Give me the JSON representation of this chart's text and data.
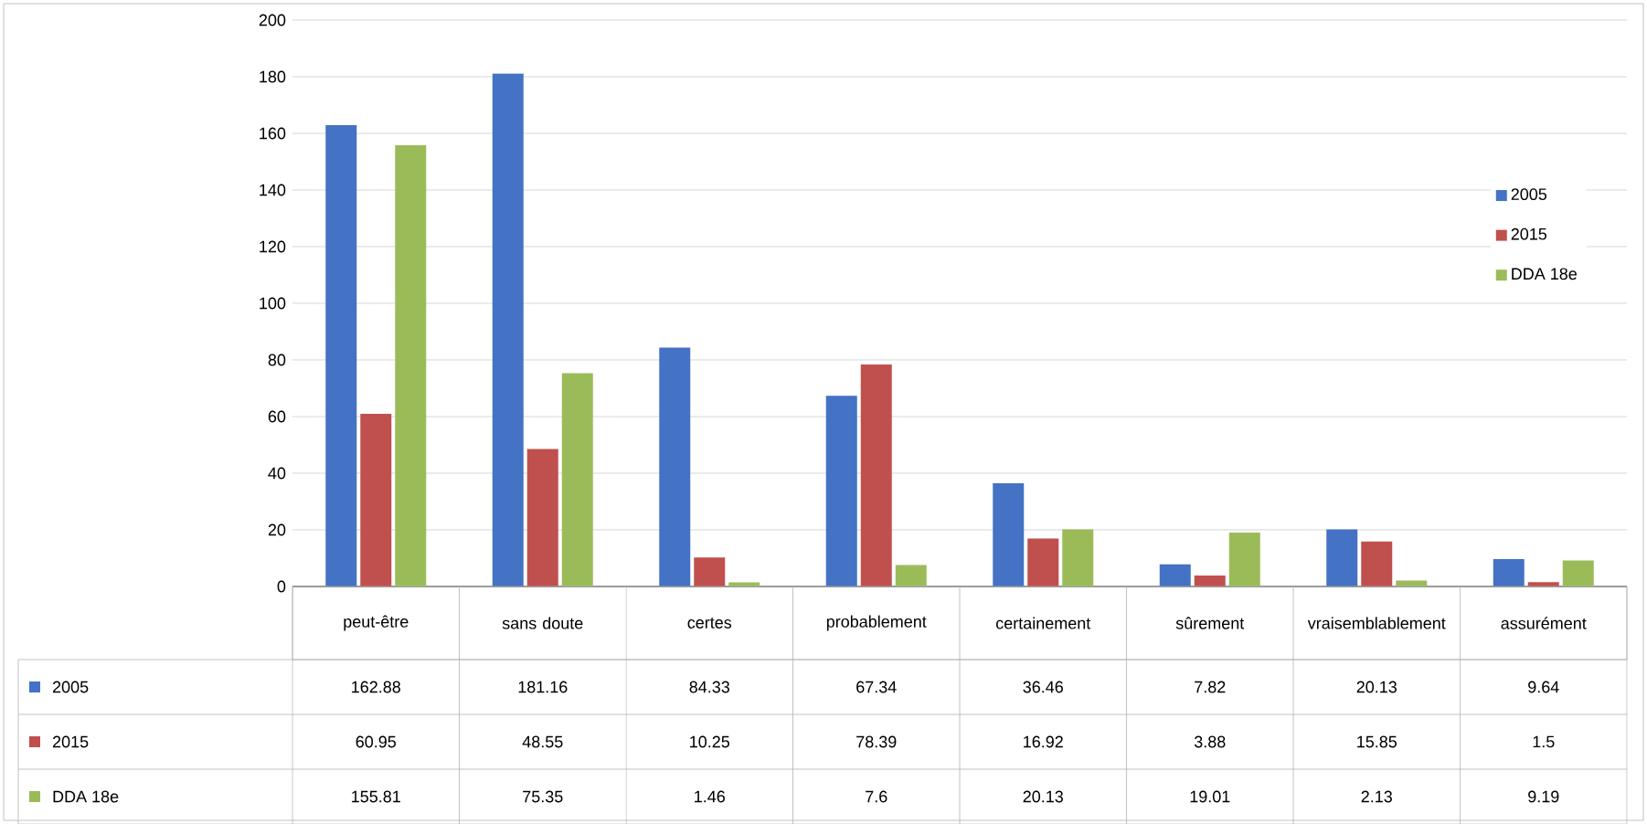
{
  "chart_data": {
    "type": "bar",
    "categories": [
      "peut-être",
      "sans doute",
      "certes",
      "probablement",
      "certainement",
      "sûrement",
      "vraisemblablement",
      "assurément"
    ],
    "series": [
      {
        "name": "2005",
        "color": "#4472c4",
        "values": [
          162.88,
          181.16,
          84.33,
          67.34,
          36.46,
          7.82,
          20.13,
          9.64
        ]
      },
      {
        "name": "2015",
        "color": "#c0504d",
        "values": [
          60.95,
          48.55,
          10.25,
          78.39,
          16.92,
          3.88,
          15.85,
          1.5
        ]
      },
      {
        "name": "DDA 18e",
        "color": "#9bbb59",
        "values": [
          155.81,
          75.35,
          1.46,
          7.6,
          20.13,
          19.01,
          2.13,
          9.19
        ]
      }
    ],
    "ylim": [
      0,
      200
    ],
    "yticks": [
      0,
      20,
      40,
      60,
      80,
      100,
      120,
      140,
      160,
      180,
      200
    ],
    "grid": "y",
    "legend": "right",
    "data_labels": true
  }
}
